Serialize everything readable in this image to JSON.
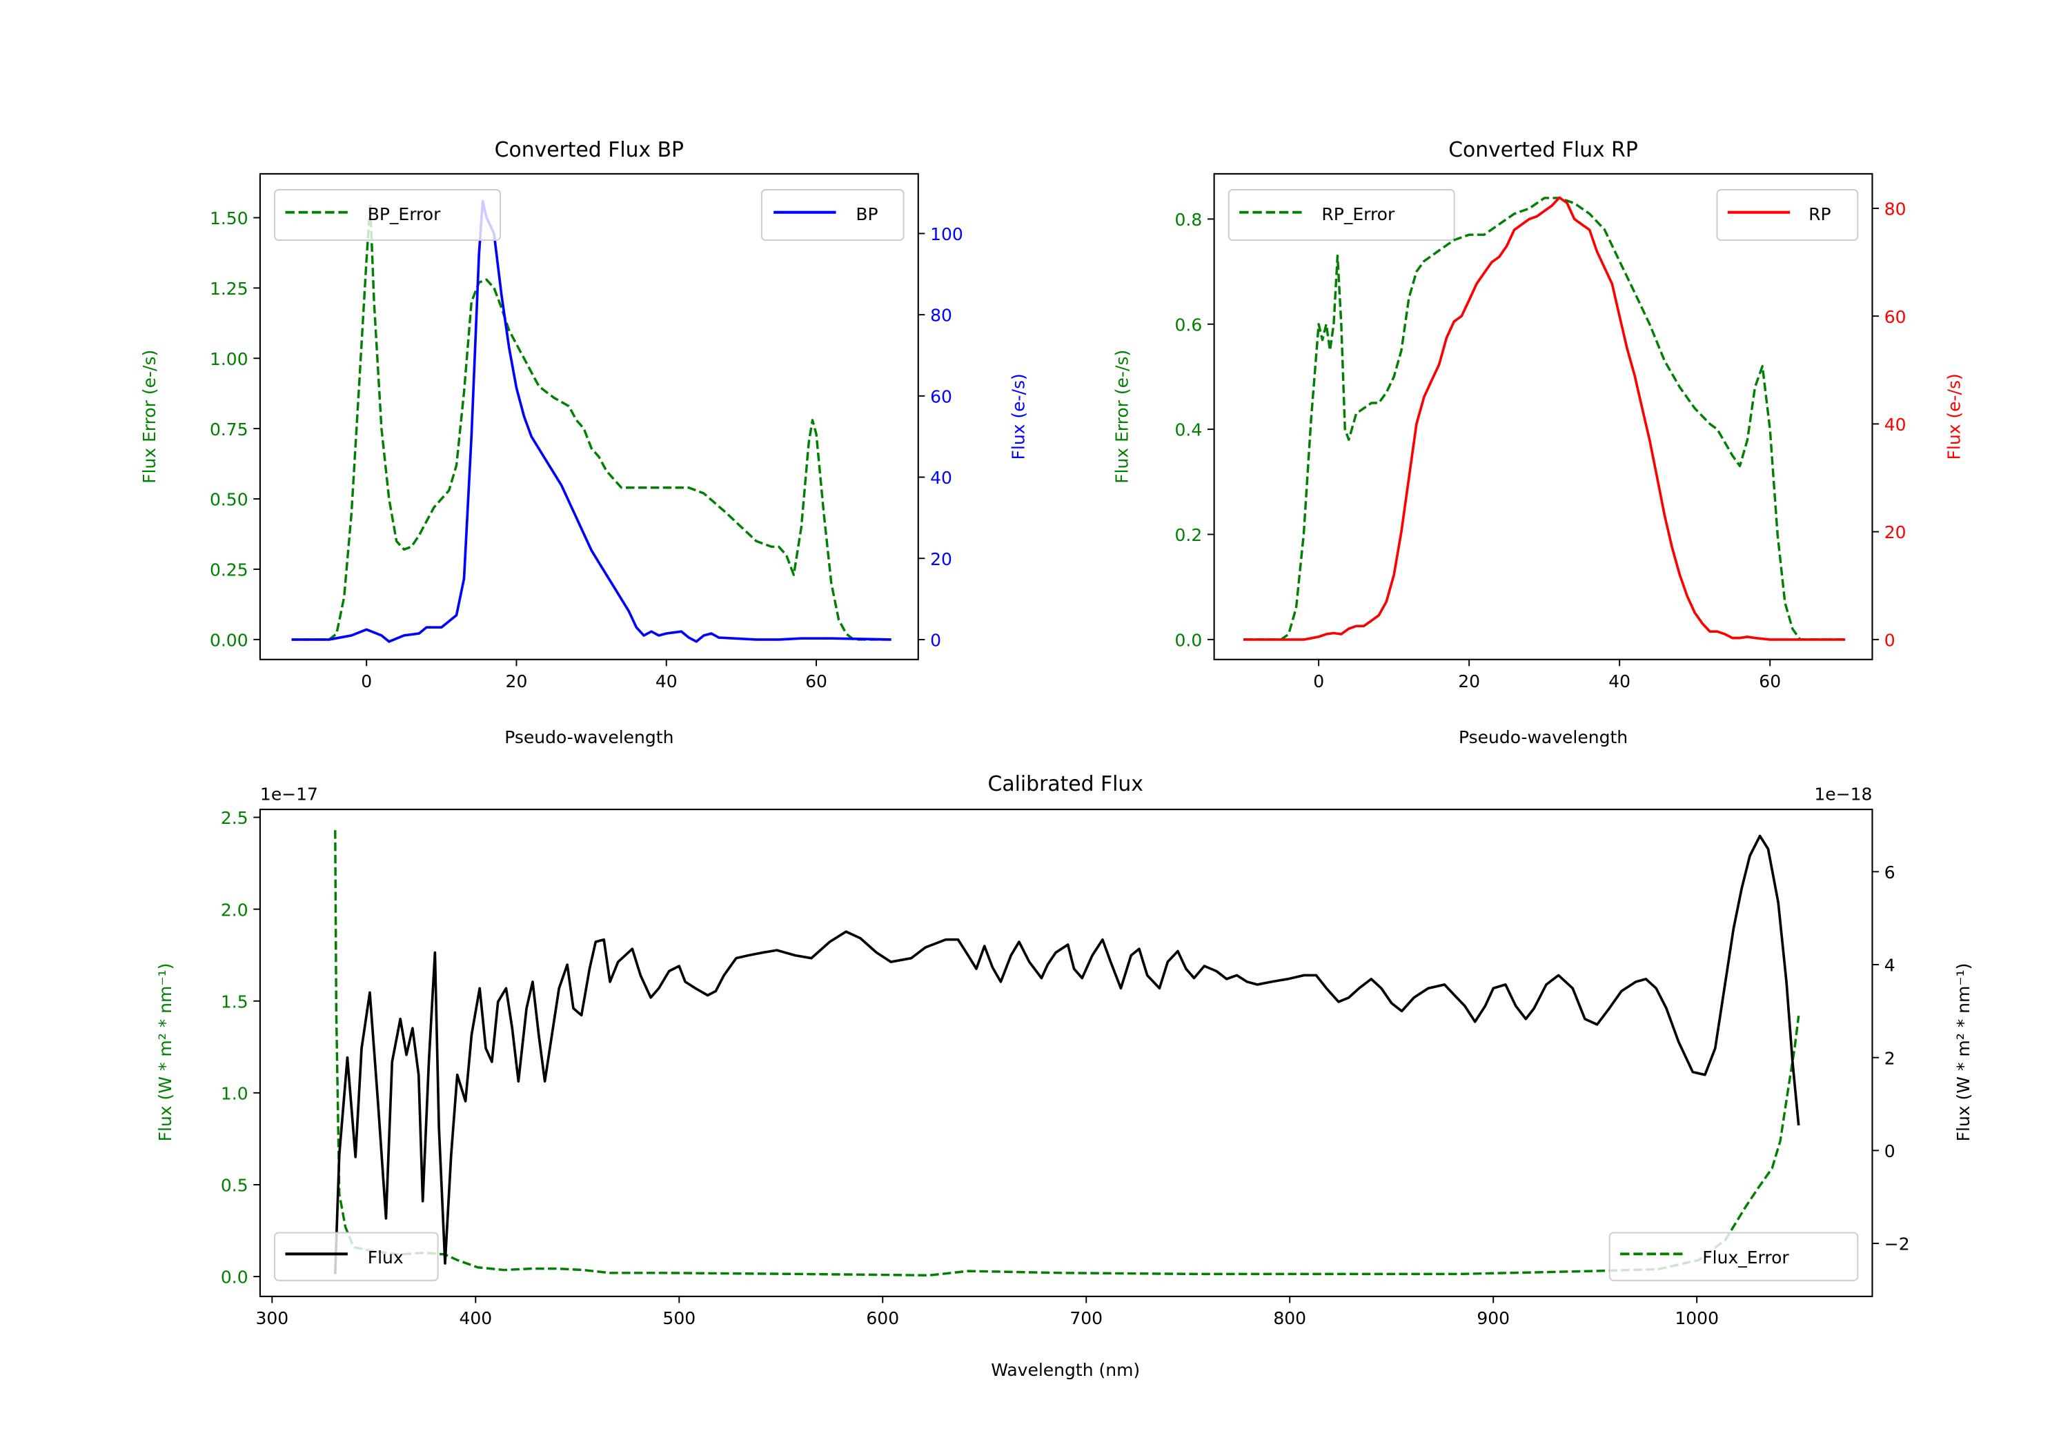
{
  "colors": {
    "bp": "#0000ff",
    "rp": "#ff0000",
    "error": "#008000",
    "flux": "#000000"
  },
  "chart_data": [
    {
      "id": "bp",
      "type": "line",
      "title": "Converted Flux BP",
      "xlabel": "Pseudo-wavelength",
      "ylabel_left": "Flux Error (e-/s)",
      "ylabel_right": "Flux (e-/s)",
      "xlim": [
        -14.2,
        73.6
      ],
      "ylim_left": [
        -0.071,
        1.656
      ],
      "ylim_right": [
        -4.9,
        114.7
      ],
      "xticks": [
        0,
        20,
        40,
        60
      ],
      "xtick_labels": [
        "0",
        "20",
        "40",
        "60"
      ],
      "yticks_left": [
        0,
        0.25,
        0.5,
        0.75,
        1.0,
        1.25,
        1.5
      ],
      "ytick_labels_left": [
        "0.00",
        "0.25",
        "0.50",
        "0.75",
        "1.00",
        "1.25",
        "1.50"
      ],
      "yticks_right": [
        0,
        20,
        40,
        60,
        80,
        100
      ],
      "ytick_labels_right": [
        "0",
        "20",
        "40",
        "60",
        "80",
        "100"
      ],
      "legend_left": "BP_Error",
      "legend_right": "BP",
      "legend_placement": [
        "upper-left",
        "upper-right"
      ],
      "series": [
        {
          "name": "BP_Error",
          "axis": "left",
          "style": "dashed",
          "color": "#008000",
          "x": [
            -10,
            -5,
            -4,
            -3,
            -2,
            -1,
            0,
            0.5,
            1,
            2,
            3,
            4,
            5,
            6,
            7,
            8,
            9,
            10,
            11,
            12,
            13,
            14,
            15,
            16,
            17,
            18,
            19,
            20,
            21,
            22,
            23,
            24,
            25,
            27,
            28,
            29,
            30,
            31,
            32,
            33,
            34,
            36,
            40,
            43,
            45,
            48,
            50,
            52,
            54,
            55,
            56,
            57,
            58,
            59,
            59.5,
            60,
            61,
            62,
            63,
            64,
            65,
            70
          ],
          "y": [
            0,
            0,
            0.02,
            0.15,
            0.45,
            0.9,
            1.35,
            1.55,
            1.2,
            0.75,
            0.5,
            0.35,
            0.32,
            0.33,
            0.37,
            0.42,
            0.47,
            0.5,
            0.53,
            0.62,
            0.88,
            1.2,
            1.27,
            1.28,
            1.25,
            1.18,
            1.1,
            1.05,
            1.0,
            0.95,
            0.9,
            0.88,
            0.86,
            0.83,
            0.78,
            0.75,
            0.68,
            0.65,
            0.6,
            0.57,
            0.54,
            0.54,
            0.54,
            0.54,
            0.52,
            0.45,
            0.4,
            0.35,
            0.33,
            0.33,
            0.3,
            0.23,
            0.4,
            0.7,
            0.78,
            0.73,
            0.45,
            0.2,
            0.07,
            0.02,
            0,
            0
          ]
        },
        {
          "name": "BP",
          "axis": "right",
          "style": "solid",
          "color": "#0000ff",
          "x": [
            -10,
            -5,
            -2,
            0,
            2,
            3,
            5,
            7,
            8,
            10,
            11,
            12,
            13,
            14,
            15,
            15.5,
            16,
            17,
            18,
            19,
            20,
            21,
            22,
            24,
            26,
            28,
            30,
            31,
            33,
            35,
            36,
            37,
            38,
            39,
            40,
            42,
            43,
            44,
            45,
            46,
            47,
            49,
            52,
            55,
            58,
            62,
            70
          ],
          "y": [
            0,
            0,
            1,
            2.5,
            1,
            -0.5,
            1,
            1.5,
            3,
            3,
            4.5,
            6,
            15,
            50,
            95,
            108,
            104,
            100,
            85,
            72,
            62,
            55,
            50,
            44,
            38,
            30,
            22,
            19,
            13,
            7,
            3,
            1,
            2,
            1,
            1.5,
            2,
            0.5,
            -0.5,
            1,
            1.5,
            0.5,
            0.3,
            0,
            0,
            0.3,
            0.3,
            0
          ]
        }
      ]
    },
    {
      "id": "rp",
      "type": "line",
      "title": "Converted Flux RP",
      "xlabel": "Pseudo-wavelength",
      "ylabel_left": "Flux Error (e-/s)",
      "ylabel_right": "Flux (e-/s)",
      "xlim": [
        -13.9,
        73.6
      ],
      "ylim_left": [
        -0.038,
        0.886
      ],
      "ylim_right": [
        -3.7,
        86.4
      ],
      "xticks": [
        0,
        20,
        40,
        60
      ],
      "xtick_labels": [
        "0",
        "20",
        "40",
        "60"
      ],
      "yticks_left": [
        0,
        0.2,
        0.4,
        0.6,
        0.8
      ],
      "ytick_labels_left": [
        "0.0",
        "0.2",
        "0.4",
        "0.6",
        "0.8"
      ],
      "yticks_right": [
        0,
        20,
        40,
        60,
        80
      ],
      "ytick_labels_right": [
        "0",
        "20",
        "40",
        "60",
        "80"
      ],
      "legend_left": "RP_Error",
      "legend_right": "RP",
      "legend_placement": [
        "upper-left",
        "upper-right"
      ],
      "series": [
        {
          "name": "RP_Error",
          "axis": "left",
          "style": "dashed",
          "color": "#008000",
          "x": [
            -10,
            -5,
            -4,
            -3,
            -2,
            -1,
            0,
            0.5,
            1,
            1.5,
            2,
            2.5,
            3,
            3.5,
            4,
            5,
            6,
            7,
            8,
            9,
            10,
            11,
            12,
            13,
            14,
            16,
            18,
            20,
            22,
            24,
            26,
            28,
            30,
            32,
            34,
            36,
            38,
            40,
            42,
            44,
            46,
            48,
            50,
            52,
            53,
            55,
            56,
            57,
            58,
            59,
            60,
            61,
            62,
            63,
            64,
            70
          ],
          "y": [
            0,
            0,
            0.01,
            0.06,
            0.2,
            0.42,
            0.6,
            0.57,
            0.6,
            0.55,
            0.6,
            0.73,
            0.6,
            0.4,
            0.38,
            0.43,
            0.44,
            0.45,
            0.45,
            0.47,
            0.5,
            0.55,
            0.65,
            0.7,
            0.72,
            0.74,
            0.76,
            0.77,
            0.77,
            0.79,
            0.81,
            0.82,
            0.84,
            0.84,
            0.83,
            0.81,
            0.78,
            0.72,
            0.66,
            0.6,
            0.53,
            0.48,
            0.44,
            0.41,
            0.4,
            0.35,
            0.33,
            0.38,
            0.48,
            0.52,
            0.4,
            0.2,
            0.07,
            0.02,
            0,
            0
          ]
        },
        {
          "name": "RP",
          "axis": "right",
          "style": "solid",
          "color": "#ff0000",
          "x": [
            -10,
            -2,
            0,
            1,
            2,
            3,
            4,
            5,
            6,
            7,
            8,
            9,
            10,
            11,
            12,
            13,
            14,
            15,
            16,
            17,
            18,
            19,
            20,
            21,
            22,
            23,
            24,
            25,
            26,
            27,
            28,
            29,
            30,
            31,
            32,
            33,
            34,
            35,
            36,
            37,
            38,
            39,
            40,
            41,
            42,
            43,
            44,
            45,
            46,
            47,
            48,
            49,
            50,
            51,
            52,
            53,
            54,
            55,
            56,
            57,
            58,
            60,
            70
          ],
          "y": [
            0,
            0,
            0.5,
            1,
            1.2,
            1,
            2,
            2.5,
            2.5,
            3.5,
            4.5,
            7,
            12,
            20,
            30,
            40,
            45,
            48,
            51,
            56,
            59,
            60,
            63,
            66,
            68,
            70,
            71,
            73,
            76,
            77,
            78,
            78.5,
            79.5,
            80.5,
            82,
            81,
            78,
            77,
            76,
            72,
            69,
            66,
            60,
            54,
            49,
            43,
            37,
            30,
            23,
            17,
            12,
            8,
            5,
            3,
            1.5,
            1.5,
            1,
            0.3,
            0.3,
            0.5,
            0.3,
            0,
            0
          ]
        }
      ]
    },
    {
      "id": "cal",
      "type": "line",
      "title": "Calibrated Flux",
      "xlabel": "Wavelength (nm)",
      "ylabel_left": "Flux (W * m² * nm⁻¹)",
      "ylabel_right": "Flux (W * m² * nm⁻¹)",
      "offset_left": "1e−17",
      "offset_right": "1e−18",
      "xlim": [
        294.1,
        1086.2
      ],
      "ylim_left": [
        -0.108,
        2.543
      ],
      "ylim_right": [
        -3.14,
        7.34
      ],
      "xticks": [
        300,
        400,
        500,
        600,
        700,
        800,
        900,
        1000
      ],
      "xtick_labels": [
        "300",
        "400",
        "500",
        "600",
        "700",
        "800",
        "900",
        "1000"
      ],
      "yticks_left": [
        0,
        0.5,
        1.0,
        1.5,
        2.0,
        2.5
      ],
      "ytick_labels_left": [
        "0.0",
        "0.5",
        "1.0",
        "1.5",
        "2.0",
        "2.5"
      ],
      "yticks_right": [
        -2,
        0,
        2,
        4,
        6
      ],
      "ytick_labels_right": [
        "−2",
        "0",
        "2",
        "4",
        "6"
      ],
      "legend_left": "Flux",
      "legend_right": "Flux_Error",
      "legend_placement": [
        "lower-left",
        "lower-right"
      ],
      "series": [
        {
          "name": "Flux_Error",
          "axis": "left",
          "style": "dashed",
          "color": "#008000",
          "x": [
            331,
            331.5,
            333,
            336,
            340,
            349,
            362,
            375,
            385,
            391,
            401,
            414,
            427,
            440,
            453,
            466,
            492,
            558,
            623,
            642,
            688,
            753,
            818,
            884,
            949,
            981,
            1001,
            1014,
            1024,
            1030,
            1037,
            1041,
            1045,
            1048,
            1050
          ],
          "y": [
            2.43,
            1.46,
            0.45,
            0.27,
            0.16,
            0.14,
            0.12,
            0.13,
            0.12,
            0.09,
            0.05,
            0.036,
            0.043,
            0.043,
            0.036,
            0.02,
            0.02,
            0.014,
            0.007,
            0.03,
            0.02,
            0.014,
            0.014,
            0.014,
            0.03,
            0.04,
            0.09,
            0.2,
            0.38,
            0.48,
            0.59,
            0.74,
            1.03,
            1.24,
            1.42
          ]
        },
        {
          "name": "Flux",
          "axis": "right",
          "style": "solid",
          "color": "#000000",
          "x": [
            331,
            333,
            337,
            341,
            344,
            348,
            352,
            356,
            359,
            363,
            366,
            369,
            372,
            374,
            377,
            380,
            382,
            385,
            388,
            391,
            395,
            398,
            402,
            405,
            408,
            411,
            415,
            418,
            421,
            425,
            428,
            431,
            434,
            438,
            441,
            445,
            448,
            452,
            456,
            459,
            463,
            466,
            470,
            477,
            481,
            486,
            490,
            495,
            500,
            503,
            508,
            514,
            518,
            522,
            528,
            534,
            541,
            548,
            557,
            565,
            574,
            582,
            589,
            597,
            604,
            614,
            621,
            631,
            637,
            642,
            646,
            650,
            654,
            658,
            663,
            667,
            672,
            678,
            681,
            685,
            691,
            694,
            698,
            703,
            708,
            712,
            717,
            722,
            726,
            730,
            736,
            740,
            745,
            749,
            753,
            758,
            764,
            769,
            774,
            779,
            784,
            791,
            799,
            807,
            813,
            818,
            824,
            829,
            834,
            840,
            845,
            850,
            855,
            861,
            868,
            876,
            881,
            886,
            891,
            896,
            900,
            906,
            911,
            916,
            920,
            926,
            932,
            939,
            945,
            951,
            957,
            963,
            970,
            975,
            980,
            985,
            991,
            998,
            1004,
            1009,
            1014,
            1018,
            1022,
            1026,
            1031,
            1035,
            1040,
            1044,
            1047,
            1050
          ],
          "y": [
            -2.66,
            -0.09,
            2.0,
            -0.14,
            2.2,
            3.4,
            1.06,
            -1.46,
            1.91,
            2.83,
            2.06,
            2.63,
            1.63,
            -1.09,
            1.91,
            4.26,
            0.49,
            -2.43,
            -0.09,
            1.63,
            1.06,
            2.49,
            3.49,
            2.2,
            1.91,
            3.2,
            3.49,
            2.63,
            1.49,
            3.06,
            3.63,
            2.49,
            1.49,
            2.63,
            3.49,
            4.0,
            3.06,
            2.91,
            3.91,
            4.49,
            4.54,
            3.63,
            4.06,
            4.34,
            3.77,
            3.29,
            3.49,
            3.86,
            3.97,
            3.63,
            3.49,
            3.34,
            3.43,
            3.77,
            4.14,
            4.2,
            4.26,
            4.31,
            4.2,
            4.14,
            4.49,
            4.71,
            4.57,
            4.26,
            4.06,
            4.14,
            4.37,
            4.54,
            4.54,
            4.2,
            3.91,
            4.4,
            3.94,
            3.63,
            4.2,
            4.49,
            4.06,
            3.71,
            4.0,
            4.26,
            4.43,
            3.91,
            3.71,
            4.2,
            4.54,
            4.06,
            3.49,
            4.2,
            4.34,
            3.77,
            3.49,
            4.06,
            4.29,
            3.91,
            3.71,
            3.97,
            3.86,
            3.69,
            3.77,
            3.63,
            3.57,
            3.63,
            3.69,
            3.77,
            3.77,
            3.49,
            3.2,
            3.29,
            3.49,
            3.69,
            3.49,
            3.17,
            3.0,
            3.29,
            3.49,
            3.57,
            3.34,
            3.11,
            2.77,
            3.11,
            3.49,
            3.57,
            3.11,
            2.83,
            3.06,
            3.57,
            3.77,
            3.49,
            2.83,
            2.71,
            3.06,
            3.43,
            3.63,
            3.69,
            3.49,
            3.06,
            2.34,
            1.69,
            1.63,
            2.2,
            3.63,
            4.77,
            5.63,
            6.34,
            6.77,
            6.49,
            5.34,
            3.63,
            1.91,
            0.54
          ]
        }
      ]
    }
  ]
}
